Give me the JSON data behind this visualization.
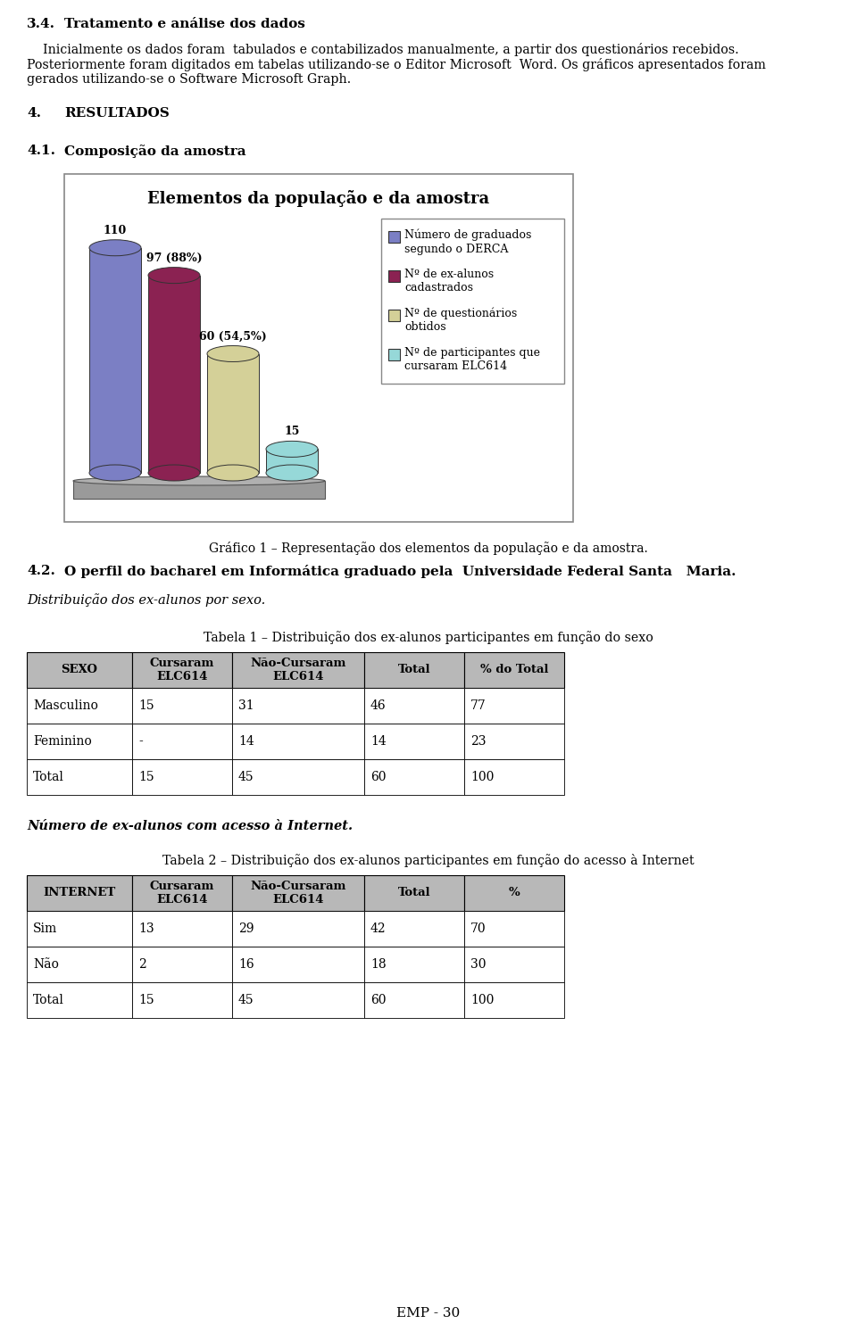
{
  "bar_values": [
    110,
    97,
    60,
    15
  ],
  "bar_labels": [
    "110",
    "97 (88%)",
    "60 (54,5%)",
    "15"
  ],
  "bar_colors": [
    "#7b7fc4",
    "#8b2252",
    "#d4d098",
    "#96d8d8"
  ],
  "legend_labels": [
    "Número de graduados\nsegundo o DERCA",
    "Nº de ex-alunos\ncadastrados",
    "Nº de questionários\nobtidos",
    "Nº de participantes que\ncursaram ELC614"
  ],
  "legend_colors": [
    "#7b7fc4",
    "#8b2252",
    "#d4d098",
    "#96d8d8"
  ],
  "chart_title": "Elementos da população e da amostra",
  "grafico_caption": "Gráfico 1 – Representação dos elementos da população e da amostra.",
  "table1_headers": [
    "SEXO",
    "Cursaram\nELC614",
    "Não-Cursaram\nELC614",
    "Total",
    "% do Total"
  ],
  "table1_data": [
    [
      "Masculino",
      "15",
      "31",
      "46",
      "77"
    ],
    [
      "Feminino",
      "-",
      "14",
      "14",
      "23"
    ],
    [
      "Total",
      "15",
      "45",
      "60",
      "100"
    ]
  ],
  "table2_headers": [
    "INTERNET",
    "Cursaram\nELC614",
    "Não-Cursaram\nELC614",
    "Total",
    "%"
  ],
  "table2_data": [
    [
      "Sim",
      "13",
      "29",
      "42",
      "70"
    ],
    [
      "Não",
      "2",
      "16",
      "18",
      "30"
    ],
    [
      "Total",
      "15",
      "45",
      "60",
      "100"
    ]
  ],
  "header_bg": "#b8b8b8"
}
